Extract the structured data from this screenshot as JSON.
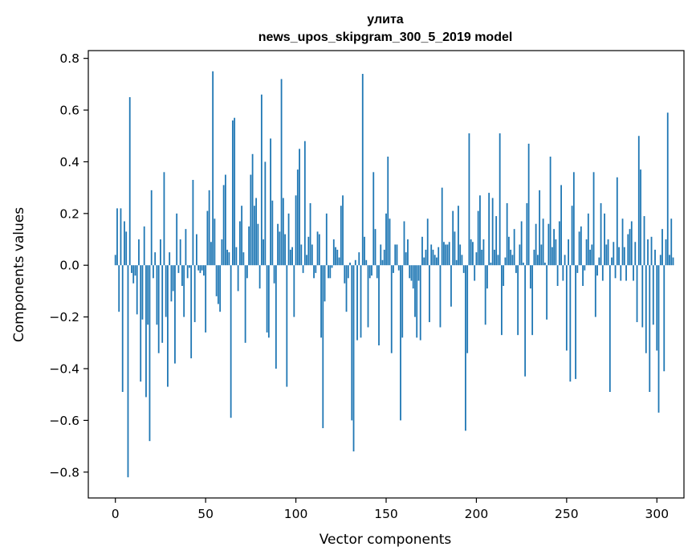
{
  "chart_data": {
    "type": "bar",
    "title_line1": "улита",
    "title_line2": "news_upos_skipgram_300_5_2019 model",
    "xlabel": "Vector components",
    "ylabel": "Components values",
    "xlim": [
      -15,
      315
    ],
    "ylim": [
      -0.9,
      0.83
    ],
    "xticks": [
      0,
      50,
      100,
      150,
      200,
      250,
      300
    ],
    "yticks": [
      -0.8,
      -0.6,
      -0.4,
      -0.2,
      0.0,
      0.2,
      0.4,
      0.6,
      0.8
    ],
    "ytick_labels": [
      "−0.8",
      "−0.6",
      "−0.4",
      "−0.2",
      "0.0",
      "0.2",
      "0.4",
      "0.6",
      "0.8"
    ],
    "bar_color": "#1f77b4",
    "grid": false,
    "values": [
      0.04,
      0.22,
      -0.18,
      0.22,
      -0.49,
      0.17,
      0.13,
      -0.82,
      0.65,
      -0.03,
      -0.07,
      -0.04,
      -0.19,
      0.1,
      -0.45,
      -0.21,
      0.15,
      -0.51,
      -0.23,
      -0.68,
      0.29,
      -0.05,
      0.05,
      -0.23,
      -0.34,
      0.1,
      -0.3,
      0.36,
      -0.2,
      -0.47,
      0.05,
      -0.14,
      -0.1,
      -0.38,
      0.2,
      -0.03,
      0.1,
      -0.08,
      -0.2,
      0.14,
      -0.05,
      -0.01,
      -0.36,
      0.33,
      -0.22,
      0.12,
      -0.02,
      -0.03,
      -0.02,
      -0.04,
      -0.26,
      0.21,
      0.29,
      0.09,
      0.75,
      0.18,
      -0.12,
      -0.15,
      -0.18,
      0.1,
      0.31,
      0.35,
      0.06,
      0.05,
      -0.59,
      0.56,
      0.57,
      0.07,
      -0.1,
      0.17,
      0.23,
      0.05,
      -0.3,
      -0.05,
      0.15,
      0.35,
      0.43,
      0.23,
      0.26,
      0.16,
      -0.09,
      0.66,
      0.1,
      0.4,
      -0.26,
      -0.28,
      0.49,
      0.25,
      -0.07,
      -0.4,
      0.16,
      0.13,
      0.72,
      0.26,
      0.12,
      -0.47,
      0.2,
      0.06,
      0.07,
      -0.2,
      0.27,
      0.37,
      0.45,
      0.08,
      -0.03,
      0.48,
      0.04,
      0.11,
      0.24,
      0.08,
      -0.05,
      -0.03,
      0.13,
      0.12,
      -0.28,
      -0.63,
      -0.14,
      0.2,
      -0.05,
      -0.05,
      -0.01,
      0.1,
      0.07,
      0.06,
      0.03,
      0.23,
      0.27,
      -0.07,
      -0.18,
      -0.05,
      0.01,
      -0.6,
      -0.72,
      0.02,
      -0.29,
      0.05,
      -0.28,
      0.74,
      0.11,
      0.02,
      -0.24,
      -0.05,
      -0.04,
      0.36,
      0.14,
      -0.05,
      -0.31,
      0.08,
      0.02,
      0.06,
      0.2,
      0.42,
      0.18,
      -0.34,
      -0.03,
      0.08,
      0.08,
      -0.02,
      -0.6,
      -0.28,
      0.17,
      0.05,
      0.1,
      -0.05,
      -0.06,
      -0.09,
      -0.2,
      -0.28,
      -0.06,
      -0.29,
      0.11,
      0.03,
      0.06,
      0.18,
      -0.22,
      0.08,
      0.06,
      0.04,
      0.03,
      0.07,
      -0.24,
      0.3,
      0.09,
      0.08,
      0.08,
      0.09,
      -0.16,
      0.21,
      0.13,
      0.02,
      0.23,
      0.08,
      0.04,
      -0.03,
      -0.64,
      -0.34,
      0.51,
      0.1,
      0.09,
      -0.06,
      0.05,
      0.21,
      0.27,
      0.06,
      0.1,
      -0.23,
      -0.09,
      0.28,
      0.01,
      0.26,
      0.06,
      0.19,
      0.04,
      0.51,
      -0.27,
      -0.08,
      0.03,
      0.24,
      0.11,
      0.06,
      0.04,
      0.14,
      -0.03,
      -0.27,
      0.08,
      0.17,
      0.01,
      -0.43,
      0.24,
      0.47,
      -0.09,
      -0.27,
      0.06,
      0.16,
      0.04,
      0.29,
      0.08,
      0.18,
      0.01,
      -0.21,
      0.16,
      0.42,
      0.07,
      0.14,
      0.1,
      -0.08,
      0.17,
      0.31,
      -0.06,
      0.04,
      -0.33,
      0.1,
      -0.45,
      0.23,
      0.36,
      -0.44,
      -0.03,
      0.13,
      0.15,
      -0.08,
      -0.02,
      0.1,
      0.2,
      0.06,
      0.08,
      0.36,
      -0.2,
      -0.04,
      0.03,
      0.24,
      -0.06,
      0.2,
      0.08,
      0.1,
      -0.49,
      0.03,
      0.09,
      -0.05,
      0.34,
      0.07,
      -0.06,
      0.18,
      0.07,
      -0.06,
      0.12,
      0.14,
      0.17,
      -0.06,
      0.09,
      -0.22,
      0.5,
      0.37,
      -0.24,
      0.19,
      -0.34,
      0.1,
      -0.49,
      0.11,
      -0.23,
      0.06,
      -0.33,
      -0.57,
      0.04,
      0.14,
      -0.41,
      0.1,
      0.59,
      0.04,
      0.18,
      0.03
    ]
  }
}
